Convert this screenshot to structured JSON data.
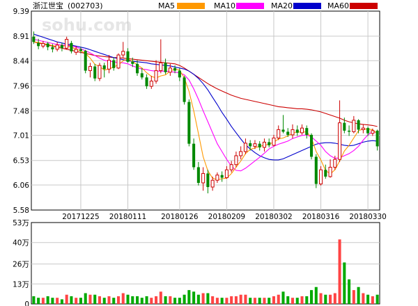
{
  "title": "浙江世宝",
  "code": "(002703)",
  "watermark": "sohu.com",
  "chart_data": [
    {
      "type": "candlestick",
      "name": "price",
      "ylim": [
        5.58,
        9.39
      ],
      "y_ticks": [
        "9.39",
        "8.91",
        "8.44",
        "7.96",
        "7.48",
        "7.01",
        "6.53",
        "6.06",
        "5.58"
      ],
      "y_tick_values": [
        9.39,
        8.91,
        8.44,
        7.96,
        7.48,
        7.01,
        6.53,
        6.06,
        5.58
      ],
      "x_ticks": [
        {
          "label": "20171225",
          "index": 10
        },
        {
          "label": "20180111",
          "index": 20
        },
        {
          "label": "20180126",
          "index": 31
        },
        {
          "label": "20180209",
          "index": 41
        },
        {
          "label": "20180302",
          "index": 51
        },
        {
          "label": "20180316",
          "index": 61
        },
        {
          "label": "20180330",
          "index": 71
        }
      ],
      "legend": [
        {
          "name": "MA5",
          "color": "#ff9900"
        },
        {
          "name": "MA10",
          "color": "#ff00ff"
        },
        {
          "name": "MA20",
          "color": "#0000cc"
        },
        {
          "name": "MA60",
          "color": "#cc0000"
        }
      ],
      "grid": true,
      "up_color": "#cc0000",
      "down_color": "#008800",
      "candles": [
        [
          8.9,
          8.8,
          9.0,
          8.76
        ],
        [
          8.78,
          8.72,
          8.86,
          8.66
        ],
        [
          8.72,
          8.77,
          8.82,
          8.68
        ],
        [
          8.77,
          8.7,
          8.8,
          8.64
        ],
        [
          8.7,
          8.66,
          8.76,
          8.6
        ],
        [
          8.66,
          8.74,
          8.8,
          8.62
        ],
        [
          8.74,
          8.68,
          8.78,
          8.62
        ],
        [
          8.68,
          8.85,
          8.9,
          8.65
        ],
        [
          8.78,
          8.62,
          8.82,
          8.58
        ],
        [
          8.6,
          8.66,
          8.72,
          8.55
        ],
        [
          8.66,
          8.63,
          8.7,
          8.58
        ],
        [
          8.63,
          8.25,
          8.65,
          8.2
        ],
        [
          8.25,
          8.33,
          8.4,
          8.12
        ],
        [
          8.33,
          8.1,
          8.38,
          8.05
        ],
        [
          8.1,
          8.35,
          8.4,
          8.05
        ],
        [
          8.35,
          8.28,
          8.4,
          8.12
        ],
        [
          8.28,
          8.45,
          8.55,
          8.2
        ],
        [
          8.45,
          8.3,
          8.5,
          8.25
        ],
        [
          8.3,
          8.55,
          8.58,
          8.28
        ],
        [
          8.55,
          8.62,
          8.8,
          8.5
        ],
        [
          8.62,
          8.42,
          8.68,
          8.4
        ],
        [
          8.42,
          8.38,
          8.5,
          8.32
        ],
        [
          8.38,
          8.2,
          8.45,
          8.15
        ],
        [
          8.2,
          8.12,
          8.3,
          8.08
        ],
        [
          8.12,
          7.95,
          8.18,
          7.9
        ],
        [
          7.95,
          8.05,
          8.15,
          7.9
        ],
        [
          8.05,
          8.25,
          8.45,
          8.0
        ],
        [
          8.25,
          8.4,
          8.85,
          8.2
        ],
        [
          8.4,
          8.22,
          8.48,
          8.18
        ],
        [
          8.22,
          8.3,
          8.38,
          8.15
        ],
        [
          8.3,
          8.25,
          8.35,
          8.2
        ],
        [
          8.25,
          8.12,
          8.3,
          8.05
        ],
        [
          8.12,
          7.65,
          8.15,
          7.6
        ],
        [
          7.65,
          6.85,
          7.7,
          6.8
        ],
        [
          6.85,
          6.4,
          6.95,
          6.35
        ],
        [
          6.4,
          6.1,
          6.5,
          6.05
        ],
        [
          6.1,
          6.28,
          6.4,
          5.95
        ],
        [
          6.28,
          6.02,
          6.35,
          5.9
        ],
        [
          6.02,
          6.15,
          6.22,
          5.95
        ],
        [
          6.15,
          6.25,
          6.3,
          6.1
        ],
        [
          6.25,
          6.2,
          6.32,
          6.12
        ],
        [
          6.2,
          6.35,
          6.42,
          6.18
        ],
        [
          6.35,
          6.45,
          6.52,
          6.3
        ],
        [
          6.45,
          6.62,
          6.7,
          6.4
        ],
        [
          6.62,
          6.7,
          6.8,
          6.55
        ],
        [
          6.7,
          6.86,
          6.95,
          6.65
        ],
        [
          6.86,
          6.8,
          6.92,
          6.72
        ],
        [
          6.8,
          6.85,
          6.92,
          6.75
        ],
        [
          6.85,
          6.78,
          6.9,
          6.72
        ],
        [
          6.78,
          6.88,
          6.95,
          6.7
        ],
        [
          6.88,
          6.82,
          6.95,
          6.78
        ],
        [
          6.82,
          6.96,
          7.02,
          6.8
        ],
        [
          6.96,
          7.12,
          7.2,
          6.92
        ],
        [
          7.12,
          7.08,
          7.4,
          7.05
        ],
        [
          7.08,
          7.02,
          7.15,
          6.98
        ],
        [
          7.02,
          7.12,
          7.22,
          6.95
        ],
        [
          7.12,
          7.06,
          7.2,
          7.0
        ],
        [
          7.06,
          7.15,
          7.22,
          7.02
        ],
        [
          7.15,
          7.02,
          7.2,
          6.95
        ],
        [
          7.02,
          6.6,
          7.05,
          6.55
        ],
        [
          6.6,
          6.08,
          6.65,
          6.0
        ],
        [
          6.08,
          6.35,
          6.42,
          6.05
        ],
        [
          6.35,
          6.22,
          6.45,
          6.18
        ],
        [
          6.22,
          6.4,
          6.55,
          6.2
        ],
        [
          6.4,
          6.55,
          6.62,
          6.35
        ],
        [
          6.55,
          7.25,
          7.68,
          6.5
        ],
        [
          7.25,
          7.1,
          7.35,
          7.05
        ],
        [
          7.1,
          7.08,
          7.2,
          7.0
        ],
        [
          7.08,
          7.3,
          7.38,
          7.05
        ],
        [
          7.3,
          7.12,
          7.32,
          7.05
        ],
        [
          7.12,
          7.15,
          7.22,
          7.05
        ],
        [
          7.15,
          7.05,
          7.18,
          7.0
        ],
        [
          7.05,
          7.1,
          7.14,
          7.0
        ],
        [
          7.1,
          6.8,
          7.12,
          6.72
        ]
      ],
      "ma5": [
        8.8,
        8.79,
        8.77,
        8.75,
        8.73,
        8.71,
        8.72,
        8.73,
        8.7,
        8.66,
        8.63,
        8.58,
        8.49,
        8.37,
        8.33,
        8.26,
        8.28,
        8.32,
        8.36,
        8.44,
        8.47,
        8.43,
        8.36,
        8.3,
        8.21,
        8.14,
        8.11,
        8.15,
        8.17,
        8.24,
        8.28,
        8.26,
        8.11,
        7.85,
        7.48,
        7.04,
        6.6,
        6.33,
        6.19,
        6.16,
        6.18,
        6.19,
        6.28,
        6.4,
        6.52,
        6.66,
        6.74,
        6.77,
        6.8,
        6.82,
        6.84,
        6.88,
        6.94,
        6.96,
        7.0,
        7.05,
        7.08,
        7.07,
        7.08,
        6.96,
        6.7,
        6.54,
        6.34,
        6.27,
        6.35,
        6.52,
        6.71,
        6.82,
        6.96,
        7.1,
        7.13,
        7.13,
        7.12,
        7.04
      ],
      "ma10": [
        8.85,
        8.83,
        8.81,
        8.79,
        8.77,
        8.75,
        8.74,
        8.74,
        8.72,
        8.7,
        8.67,
        8.63,
        8.59,
        8.54,
        8.49,
        8.45,
        8.43,
        8.42,
        8.4,
        8.4,
        8.38,
        8.34,
        8.31,
        8.28,
        8.27,
        8.25,
        8.24,
        8.24,
        8.24,
        8.23,
        8.22,
        8.21,
        8.17,
        8.07,
        7.9,
        7.7,
        7.48,
        7.27,
        7.06,
        6.85,
        6.7,
        6.55,
        6.42,
        6.34,
        6.33,
        6.38,
        6.45,
        6.52,
        6.59,
        6.67,
        6.75,
        6.8,
        6.84,
        6.87,
        6.9,
        6.95,
        6.98,
        7.01,
        7.02,
        6.98,
        6.9,
        6.82,
        6.7,
        6.62,
        6.57,
        6.58,
        6.62,
        6.66,
        6.72,
        6.8,
        6.92,
        7.02,
        7.08,
        7.06
      ],
      "ma20": [
        8.95,
        8.92,
        8.89,
        8.86,
        8.83,
        8.8,
        8.78,
        8.76,
        8.74,
        8.72,
        8.7,
        8.68,
        8.65,
        8.62,
        8.59,
        8.56,
        8.53,
        8.5,
        8.48,
        8.46,
        8.44,
        8.43,
        8.42,
        8.41,
        8.4,
        8.38,
        8.37,
        8.36,
        8.35,
        8.34,
        8.32,
        8.3,
        8.28,
        8.24,
        8.18,
        8.1,
        8.0,
        7.88,
        7.74,
        7.6,
        7.45,
        7.32,
        7.18,
        7.06,
        6.94,
        6.83,
        6.75,
        6.68,
        6.62,
        6.58,
        6.55,
        6.54,
        6.54,
        6.56,
        6.6,
        6.64,
        6.68,
        6.72,
        6.76,
        6.8,
        6.84,
        6.86,
        6.87,
        6.87,
        6.86,
        6.84,
        6.82,
        6.81,
        6.82,
        6.85,
        6.88,
        6.9,
        6.91,
        6.9
      ],
      "ma60": [
        8.8,
        8.78,
        8.76,
        8.74,
        8.72,
        8.7,
        8.68,
        8.66,
        8.64,
        8.62,
        8.6,
        8.58,
        8.56,
        8.54,
        8.53,
        8.52,
        8.51,
        8.5,
        8.5,
        8.49,
        8.48,
        8.47,
        8.46,
        8.45,
        8.44,
        8.43,
        8.42,
        8.41,
        8.4,
        8.39,
        8.38,
        8.35,
        8.3,
        8.24,
        8.18,
        8.12,
        8.06,
        8.0,
        7.95,
        7.9,
        7.86,
        7.82,
        7.78,
        7.75,
        7.72,
        7.7,
        7.68,
        7.66,
        7.64,
        7.62,
        7.6,
        7.58,
        7.56,
        7.55,
        7.54,
        7.53,
        7.52,
        7.52,
        7.51,
        7.5,
        7.48,
        7.46,
        7.43,
        7.4,
        7.37,
        7.34,
        7.3,
        7.27,
        7.25,
        7.23,
        7.22,
        7.21,
        7.2,
        7.18
      ]
    },
    {
      "type": "bar",
      "name": "volume",
      "unit": "万",
      "ylim": [
        0,
        53
      ],
      "y_ticks": [
        "53万",
        "40万",
        "26万",
        "13万",
        "0"
      ],
      "y_tick_values": [
        53,
        40,
        26,
        13,
        0
      ],
      "values": [
        5,
        4,
        4,
        5,
        4,
        4,
        3,
        6,
        5,
        4,
        4,
        7,
        6,
        6,
        5,
        4,
        5,
        4,
        5,
        7,
        6,
        5,
        5,
        4,
        5,
        4,
        5,
        8,
        5,
        5,
        4,
        4,
        6,
        9,
        8,
        6,
        7,
        7,
        5,
        4,
        4,
        4,
        5,
        5,
        6,
        6,
        4,
        4,
        4,
        4,
        4,
        5,
        6,
        8,
        5,
        4,
        4,
        5,
        5,
        9,
        11,
        7,
        6,
        6,
        7,
        42,
        27,
        16,
        9,
        11,
        7,
        6,
        5,
        6
      ]
    }
  ]
}
